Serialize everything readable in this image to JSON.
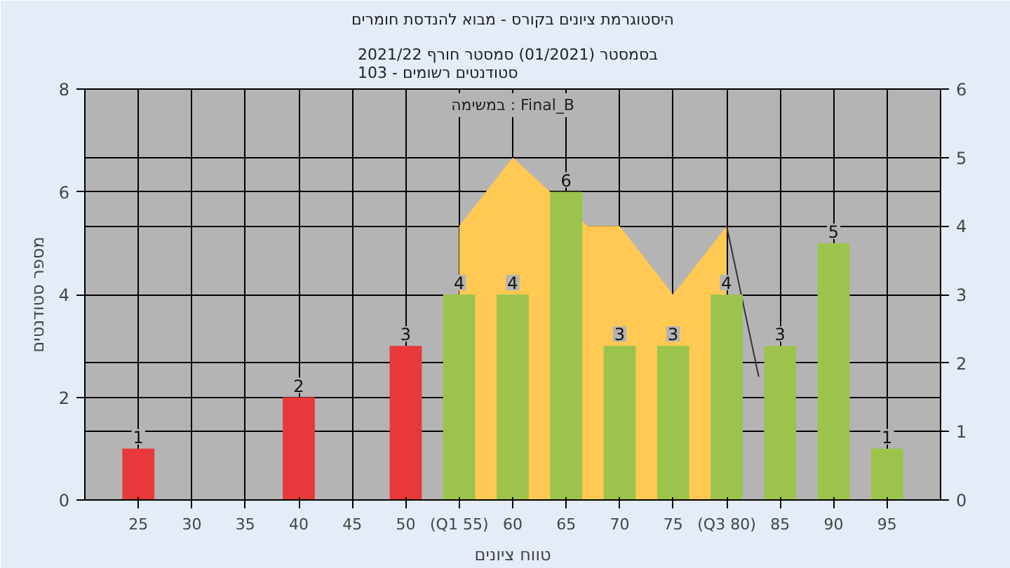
{
  "chart_data": {
    "type": "bar",
    "title": "היסטוגרמת ציונים בקורס - מבוא להנדסת חומרים",
    "subtitle": "בסמסטר  (01/2021)  סמסטר חורף 2021/22\nסטודנטים רשומים - 103",
    "xlabel": "טווח ציונים",
    "ylabel": "מספר סטודנטים",
    "annotations": [
      "במשימה : Final_B"
    ],
    "xlim": [
      20,
      100
    ],
    "xticks": [
      25,
      30,
      35,
      40,
      45,
      50,
      {
        "value": 55,
        "label": "(Q1 55)"
      },
      60,
      65,
      70,
      75,
      {
        "value": 80,
        "label": "(Q3 80)"
      },
      85,
      90,
      95
    ],
    "ylim": [
      0,
      8
    ],
    "yticks": [
      0,
      2,
      4,
      6,
      8
    ],
    "y2lim": [
      0,
      6
    ],
    "y2ticks": [
      0,
      1,
      2,
      3,
      4,
      5,
      6
    ],
    "grid": true,
    "series": [
      {
        "type": "area",
        "axis": "y2",
        "color": "#ffc953",
        "x": [
          55,
          60,
          67,
          70,
          75,
          80
        ],
        "values": [
          4,
          5,
          4,
          4,
          3,
          4
        ]
      },
      {
        "type": "line",
        "axis": "y2",
        "color": "#333333",
        "x": [
          80,
          83
        ],
        "values": [
          4,
          1.8
        ]
      },
      {
        "x": [
          25,
          40,
          50,
          55,
          60,
          65,
          70,
          75,
          80,
          85,
          90,
          95
        ],
        "values": [
          1,
          2,
          3,
          4,
          4,
          6,
          3,
          3,
          4,
          3,
          5,
          1
        ],
        "value_labels": [
          "1",
          "2",
          "3",
          "4",
          "4",
          "6",
          "3",
          "3",
          "4",
          "3",
          "5",
          "1"
        ],
        "colors": [
          "#e8393a",
          "#e8393a",
          "#e8393a",
          "#9cc44c",
          "#9cc44c",
          "#9cc44c",
          "#9cc44c",
          "#9cc44c",
          "#9cc44c",
          "#9cc44c",
          "#9cc44c",
          "#9cc44c"
        ]
      }
    ]
  }
}
